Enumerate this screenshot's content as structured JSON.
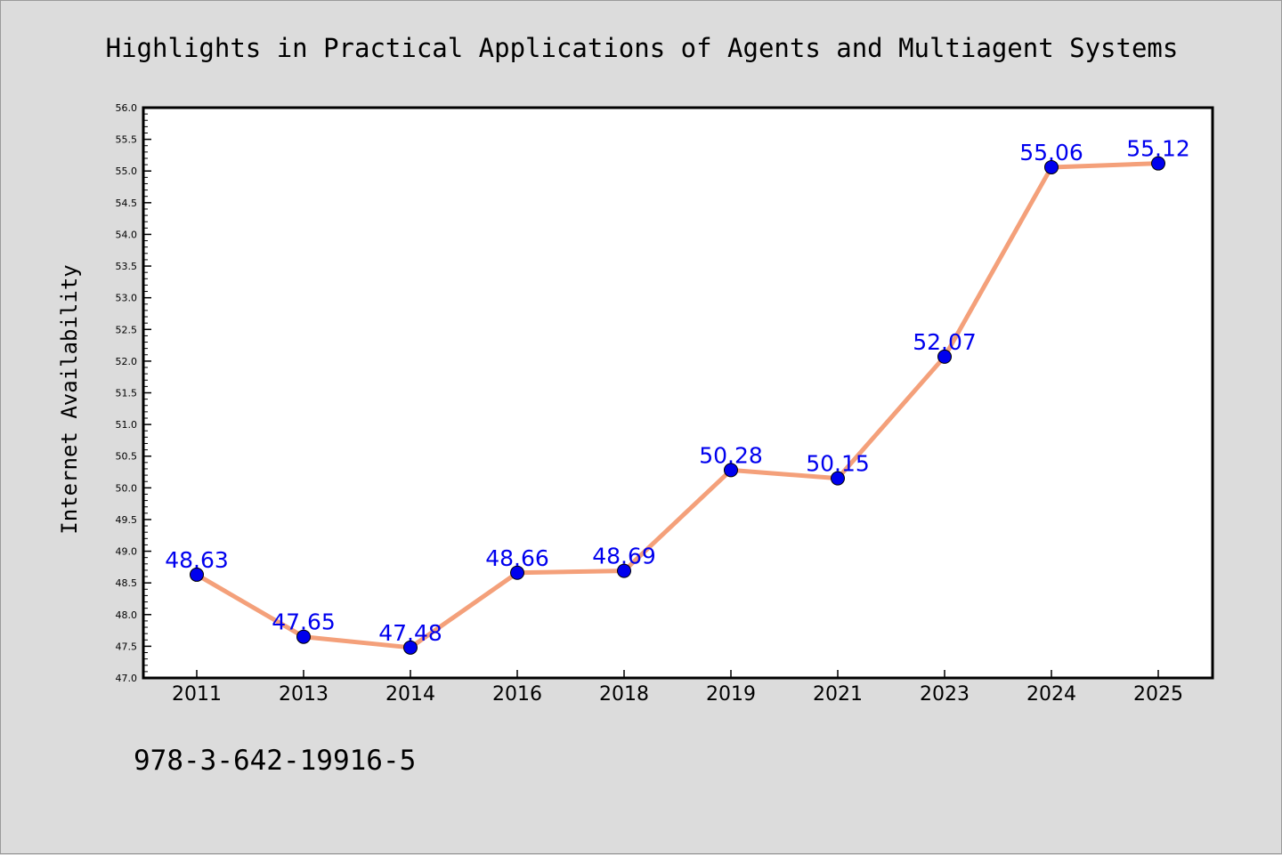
{
  "footer_text": "978-3-642-19916-5",
  "colors": {
    "background": "#dcdcdc",
    "plot_background": "#ffffff",
    "line": "#f4a07a",
    "marker": "#0000ee",
    "label": "#0000ee"
  },
  "chart_data": {
    "type": "line",
    "title": "Highlights in Practical Applications of Agents and Multiagent Systems",
    "xlabel": "",
    "ylabel": "Internet Availability",
    "categories": [
      "2011",
      "2013",
      "2014",
      "2016",
      "2018",
      "2019",
      "2021",
      "2023",
      "2024",
      "2025"
    ],
    "series": [
      {
        "values": [
          48.63,
          47.65,
          47.48,
          48.66,
          48.69,
          50.28,
          50.15,
          52.07,
          55.06,
          55.12
        ],
        "data_labels": [
          "48.63",
          "47.65",
          "47.48",
          "48.66",
          "48.69",
          "50.28",
          "50.15",
          "52.07",
          "55.06",
          "55.12"
        ]
      }
    ],
    "ylim": [
      47.0,
      56.0
    ],
    "yticks": [
      "47.0",
      "47.5",
      "48.0",
      "48.5",
      "49.0",
      "49.5",
      "50.0",
      "50.5",
      "51.0",
      "51.5",
      "52.0",
      "52.5",
      "53.0",
      "53.5",
      "54.0",
      "54.5",
      "55.0",
      "55.5",
      "56.0"
    ],
    "grid": false,
    "legend": "none"
  }
}
